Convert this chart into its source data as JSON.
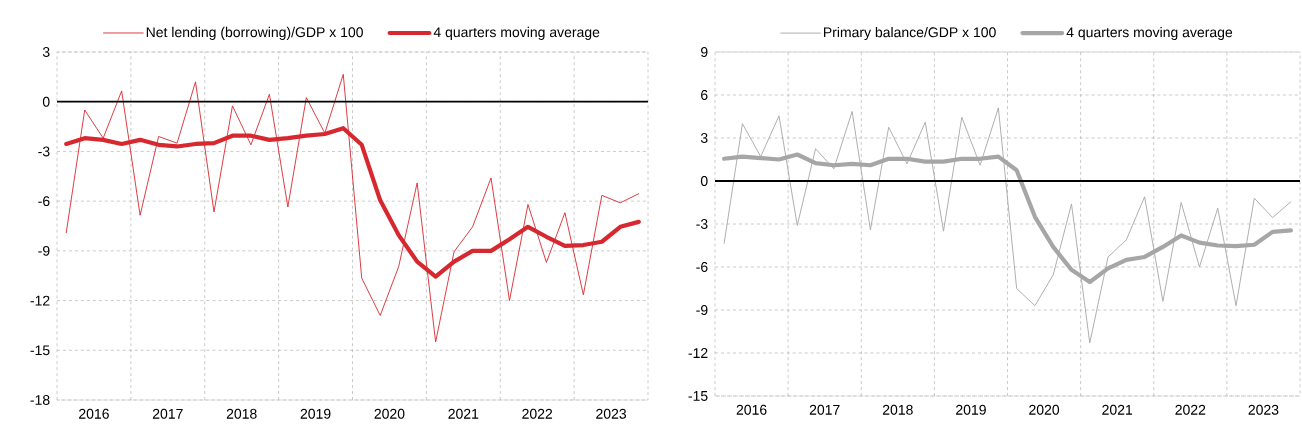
{
  "chart_data": [
    {
      "type": "line",
      "x": [
        2016.125,
        2016.375,
        2016.625,
        2016.875,
        2017.125,
        2017.375,
        2017.625,
        2017.875,
        2018.125,
        2018.375,
        2018.625,
        2018.875,
        2019.125,
        2019.375,
        2019.625,
        2019.875,
        2020.125,
        2020.375,
        2020.625,
        2020.875,
        2021.125,
        2021.375,
        2021.625,
        2021.875,
        2022.125,
        2022.375,
        2022.625,
        2022.875,
        2023.125,
        2023.375,
        2023.625,
        2023.875
      ],
      "series": [
        {
          "name": "Net lending (borrowing)/GDP x 100",
          "color": "#d7282f",
          "values": [
            -7.9,
            -0.5,
            -2.2,
            0.65,
            -6.85,
            -2.1,
            -2.5,
            1.2,
            -6.65,
            -0.25,
            -2.6,
            0.45,
            -6.35,
            0.25,
            -1.9,
            1.65,
            -10.65,
            -12.9,
            -9.95,
            -4.9,
            -14.5,
            -9.05,
            -7.55,
            -4.6,
            -12.0,
            -6.2,
            -9.7,
            -6.7,
            -11.65,
            -5.65,
            -6.1,
            -5.55
          ]
        },
        {
          "name": "4 quarters moving average",
          "color": "#d7282f",
          "values": [
            -2.55,
            -2.2,
            -2.3,
            -2.55,
            -2.3,
            -2.6,
            -2.7,
            -2.55,
            -2.5,
            -2.05,
            -2.05,
            -2.3,
            -2.2,
            -2.05,
            -1.95,
            -1.6,
            -2.6,
            -5.95,
            -8.05,
            -9.65,
            -10.55,
            -9.65,
            -9.0,
            -9.0,
            -8.3,
            -7.55,
            -8.15,
            -8.7,
            -8.65,
            -8.45,
            -7.55,
            -7.25
          ]
        }
      ],
      "xlim": [
        2016,
        2024
      ],
      "xticks": [
        {
          "value": 2016.5,
          "label": "2016"
        },
        {
          "value": 2017.5,
          "label": "2017"
        },
        {
          "value": 2018.5,
          "label": "2018"
        },
        {
          "value": 2019.5,
          "label": "2019"
        },
        {
          "value": 2020.5,
          "label": "2020"
        },
        {
          "value": 2021.5,
          "label": "2021"
        },
        {
          "value": 2022.5,
          "label": "2022"
        },
        {
          "value": 2023.5,
          "label": "2023"
        },
        {
          "value": 2017,
          "label": null
        },
        {
          "value": 2018,
          "label": null
        },
        {
          "value": 2019,
          "label": null
        },
        {
          "value": 2020,
          "label": null
        },
        {
          "value": 2021,
          "label": null
        },
        {
          "value": 2022,
          "label": null
        },
        {
          "value": 2023,
          "label": null
        }
      ],
      "ylim": [
        -18,
        3
      ],
      "yticks": [
        -18,
        -15,
        -12,
        -9,
        -6,
        -3,
        0,
        3
      ],
      "ref_lines": [
        {
          "axis": "y",
          "value": 0,
          "color": "#000000"
        }
      ],
      "grid": true,
      "legend": "top"
    },
    {
      "type": "line",
      "x": [
        2016.125,
        2016.375,
        2016.625,
        2016.875,
        2017.125,
        2017.375,
        2017.625,
        2017.875,
        2018.125,
        2018.375,
        2018.625,
        2018.875,
        2019.125,
        2019.375,
        2019.625,
        2019.875,
        2020.125,
        2020.375,
        2020.625,
        2020.875,
        2021.125,
        2021.375,
        2021.625,
        2021.875,
        2022.125,
        2022.375,
        2022.625,
        2022.875,
        2023.125,
        2023.375,
        2023.625,
        2023.875
      ],
      "series": [
        {
          "name": "Primary balance/GDP x 100",
          "color": "#a6a6a6",
          "values": [
            -4.35,
            4.0,
            1.7,
            4.55,
            -3.1,
            2.25,
            0.85,
            4.85,
            -3.4,
            3.75,
            1.2,
            4.1,
            -3.5,
            4.45,
            1.1,
            5.1,
            -7.5,
            -8.7,
            -6.55,
            -1.6,
            -11.3,
            -5.3,
            -4.1,
            -1.1,
            -8.4,
            -1.5,
            -6.0,
            -1.9,
            -8.7,
            -1.2,
            -2.55,
            -1.45
          ]
        },
        {
          "name": "4 quarters moving average",
          "color": "#a6a6a6",
          "values": [
            1.55,
            1.7,
            1.6,
            1.5,
            1.85,
            1.25,
            1.1,
            1.2,
            1.1,
            1.55,
            1.55,
            1.35,
            1.35,
            1.55,
            1.55,
            1.7,
            0.75,
            -2.5,
            -4.6,
            -6.2,
            -7.05,
            -6.1,
            -5.5,
            -5.3,
            -4.6,
            -3.8,
            -4.3,
            -4.5,
            -4.55,
            -4.45,
            -3.55,
            -3.45
          ]
        }
      ],
      "xlim": [
        2016,
        2024
      ],
      "xticks": [
        {
          "value": 2016.5,
          "label": "2016"
        },
        {
          "value": 2017.5,
          "label": "2017"
        },
        {
          "value": 2018.5,
          "label": "2018"
        },
        {
          "value": 2019.5,
          "label": "2019"
        },
        {
          "value": 2020.5,
          "label": "2020"
        },
        {
          "value": 2021.5,
          "label": "2021"
        },
        {
          "value": 2022.5,
          "label": "2022"
        },
        {
          "value": 2023.5,
          "label": "2023"
        },
        {
          "value": 2017,
          "label": null
        },
        {
          "value": 2018,
          "label": null
        },
        {
          "value": 2019,
          "label": null
        },
        {
          "value": 2020,
          "label": null
        },
        {
          "value": 2021,
          "label": null
        },
        {
          "value": 2022,
          "label": null
        },
        {
          "value": 2023,
          "label": null
        }
      ],
      "ylim": [
        -15,
        9
      ],
      "yticks": [
        -15,
        -12,
        -9,
        -6,
        -3,
        0,
        3,
        6,
        9
      ],
      "ref_lines": [
        {
          "axis": "y",
          "value": 0,
          "color": "#000000"
        }
      ],
      "grid": true,
      "legend": "top"
    }
  ]
}
